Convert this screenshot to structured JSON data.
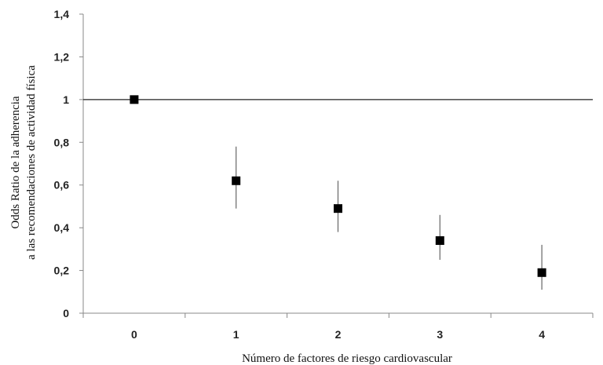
{
  "chart_data": {
    "type": "scatter",
    "xlabel": "Número de factores de riesgo cardiovascular",
    "ylabel_lines": [
      "Odds Ratio de la adherencia",
      "a las recomendaciones de actividad física"
    ],
    "categories": [
      "0",
      "1",
      "2",
      "3",
      "4"
    ],
    "ylim": [
      0,
      1.4
    ],
    "yticks": [
      "0",
      "0,2",
      "0,4",
      "0,6",
      "0,8",
      "1",
      "1,2",
      "1,4"
    ],
    "reference_line": 1,
    "points": [
      {
        "x": "0",
        "y": 1.0,
        "lower": 1.0,
        "upper": 1.0
      },
      {
        "x": "1",
        "y": 0.62,
        "lower": 0.49,
        "upper": 0.78
      },
      {
        "x": "2",
        "y": 0.49,
        "lower": 0.38,
        "upper": 0.62
      },
      {
        "x": "3",
        "y": 0.34,
        "lower": 0.25,
        "upper": 0.46
      },
      {
        "x": "4",
        "y": 0.19,
        "lower": 0.11,
        "upper": 0.32
      }
    ],
    "grid": false,
    "legend": "none",
    "colors": {
      "marker": "#000000",
      "axis": "#888888",
      "reference": "#222222",
      "error": "#666666"
    }
  }
}
